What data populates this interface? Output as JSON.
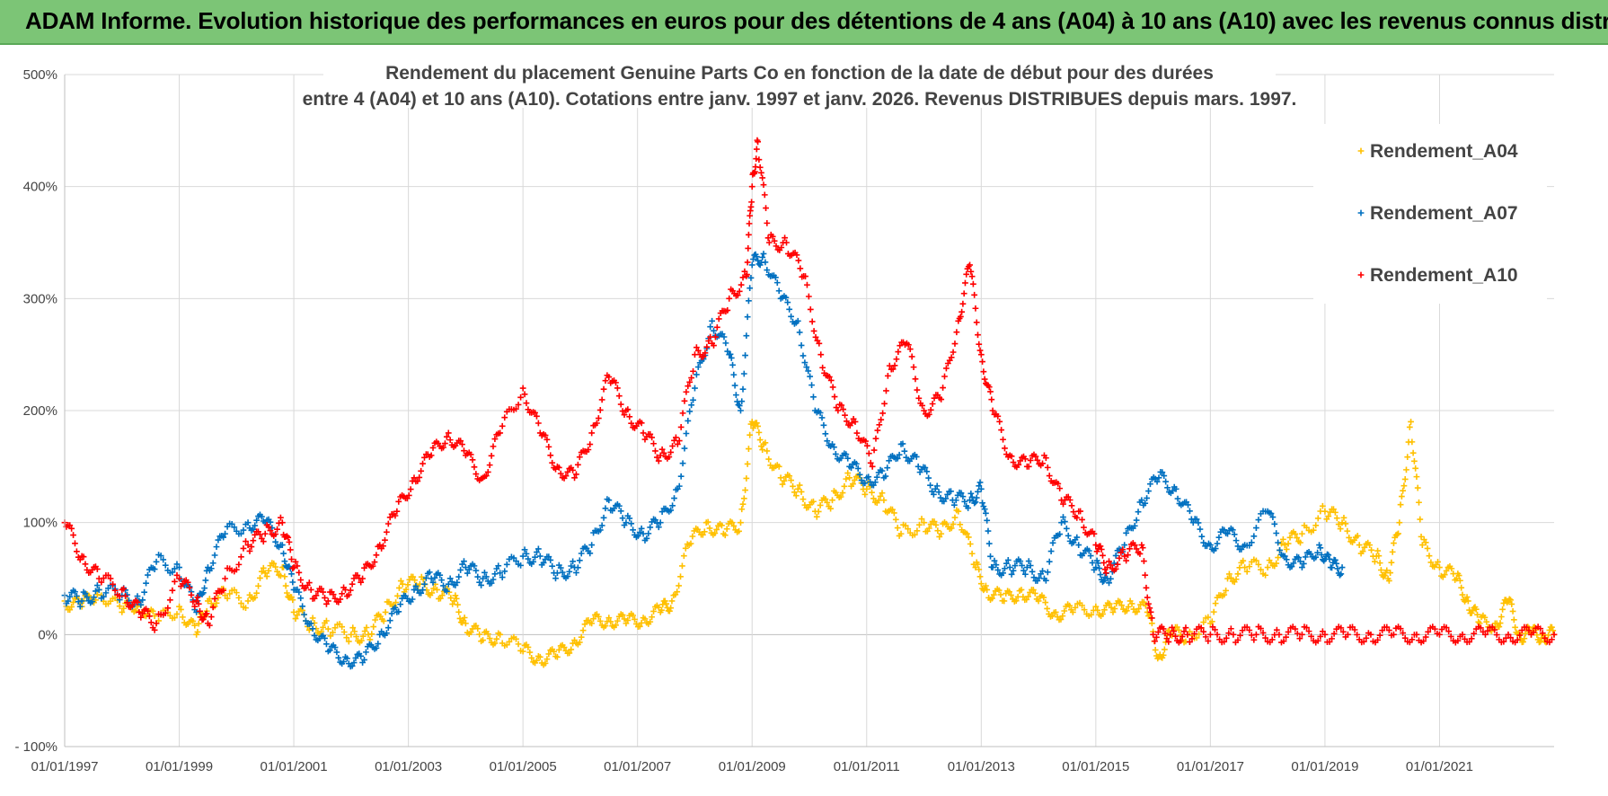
{
  "banner": {
    "title": "ADAM Informe. Evolution historique des performances en euros pour des détentions de 4 ans (A04) à 10 ans (A10) avec les revenus connus distribués"
  },
  "colors": {
    "banner": "#7cc576",
    "A04": "#ffc000",
    "A07": "#0070c0",
    "A10": "#ff0000",
    "grid": "#d9d9d9"
  },
  "chart_data": {
    "type": "scatter",
    "title_line1": "Rendement du placement Genuine Parts Co en fonction de la date de début pour des durées",
    "title_line2": "entre 4 (A04) et 10 ans (A10).  Cotations entre janv. 1997 et janv. 2026.  Revenus DISTRIBUES depuis mars. 1997.",
    "xlabel": "",
    "ylabel": "",
    "xlim": [
      1997.0,
      2023.0
    ],
    "ylim": [
      -100,
      500
    ],
    "y_ticks": [
      {
        "value": 500,
        "label": "500%"
      },
      {
        "value": 400,
        "label": "400%"
      },
      {
        "value": 300,
        "label": "300%"
      },
      {
        "value": 200,
        "label": "200%"
      },
      {
        "value": 100,
        "label": "100%"
      },
      {
        "value": 0,
        "label": "0%"
      },
      {
        "value": -100,
        "label": "- 100%"
      }
    ],
    "x_ticks": [
      {
        "value": 1997,
        "label": "01/01/1997"
      },
      {
        "value": 1999,
        "label": "01/01/1999"
      },
      {
        "value": 2001,
        "label": "01/01/2001"
      },
      {
        "value": 2003,
        "label": "01/01/2003"
      },
      {
        "value": 2005,
        "label": "01/01/2005"
      },
      {
        "value": 2007,
        "label": "01/01/2007"
      },
      {
        "value": 2009,
        "label": "01/01/2009"
      },
      {
        "value": 2011,
        "label": "01/01/2011"
      },
      {
        "value": 2013,
        "label": "01/01/2013"
      },
      {
        "value": 2015,
        "label": "01/01/2015"
      },
      {
        "value": 2017,
        "label": "01/01/2017"
      },
      {
        "value": 2019,
        "label": "01/01/2019"
      },
      {
        "value": 2021,
        "label": "01/01/2021"
      }
    ],
    "grid": true,
    "legend_position": "top-right",
    "series": [
      {
        "name": "Rendement_A04",
        "marker": "+",
        "x": [
          1997.0,
          1997.3,
          1997.6,
          1998.0,
          1998.3,
          1998.6,
          1999.0,
          1999.3,
          1999.5,
          1999.8,
          2000.2,
          2000.5,
          2000.8,
          2001.0,
          2001.3,
          2001.6,
          2002.0,
          2002.3,
          2002.6,
          2002.9,
          2003.2,
          2003.5,
          2003.8,
          2004.0,
          2004.3,
          2004.6,
          2005.0,
          2005.3,
          2005.6,
          2005.9,
          2006.2,
          2006.5,
          2006.8,
          2007.1,
          2007.4,
          2007.6,
          2007.9,
          2008.2,
          2008.5,
          2008.8,
          2009.0,
          2009.2,
          2009.5,
          2009.8,
          2010.1,
          2010.4,
          2010.7,
          2011.0,
          2011.3,
          2011.6,
          2012.0,
          2012.3,
          2012.6,
          2012.9,
          2013.1,
          2013.4,
          2013.7,
          2014.0,
          2014.3,
          2014.6,
          2015.0,
          2015.3,
          2015.6,
          2015.9,
          2016.1,
          2016.3,
          2016.6,
          2017.0,
          2017.3,
          2017.6,
          2018.0,
          2018.3,
          2018.6,
          2019.0,
          2019.3,
          2019.6,
          2019.9,
          2020.1,
          2020.3,
          2020.5,
          2020.7,
          2021.0,
          2021.3,
          2021.5,
          2021.7,
          2022.0,
          2022.2,
          2022.4,
          2022.6,
          2022.8,
          2023.0
        ],
        "values": [
          30,
          25,
          40,
          20,
          30,
          10,
          25,
          0,
          30,
          35,
          30,
          55,
          60,
          20,
          10,
          5,
          0,
          0,
          20,
          45,
          45,
          40,
          30,
          10,
          -5,
          0,
          -15,
          -20,
          -20,
          -5,
          10,
          15,
          10,
          15,
          20,
          30,
          80,
          100,
          90,
          100,
          190,
          170,
          140,
          130,
          110,
          120,
          140,
          130,
          120,
          90,
          100,
          90,
          110,
          60,
          40,
          30,
          40,
          30,
          20,
          20,
          25,
          20,
          30,
          20,
          -20,
          0,
          0,
          10,
          50,
          60,
          60,
          80,
          90,
          110,
          100,
          80,
          70,
          50,
          100,
          190,
          80,
          60,
          50,
          30,
          10,
          10,
          30,
          0,
          0,
          0,
          0
        ]
      },
      {
        "name": "Rendement_A07",
        "marker": "+",
        "x": [
          1997.0,
          1997.3,
          1997.6,
          1998.0,
          1998.3,
          1998.6,
          1999.0,
          1999.3,
          1999.5,
          1999.8,
          2000.2,
          2000.5,
          2000.8,
          2001.0,
          2001.3,
          2001.6,
          2001.9,
          2002.2,
          2002.5,
          2002.8,
          2003.1,
          2003.4,
          2003.7,
          2004.0,
          2004.3,
          2004.6,
          2005.0,
          2005.3,
          2005.6,
          2005.9,
          2006.2,
          2006.5,
          2006.8,
          2007.1,
          2007.4,
          2007.7,
          2008.0,
          2008.3,
          2008.6,
          2008.8,
          2009.0,
          2009.2,
          2009.5,
          2009.8,
          2010.1,
          2010.4,
          2010.7,
          2011.0,
          2011.3,
          2011.6,
          2011.9,
          2012.2,
          2012.5,
          2012.8,
          2013.0,
          2013.2,
          2013.5,
          2013.8,
          2014.1,
          2014.4,
          2014.7,
          2015.0,
          2015.2,
          2015.5,
          2015.8,
          2016.1,
          2016.4,
          2016.7,
          2017.0,
          2017.3,
          2017.6,
          2018.0,
          2018.3,
          2018.6,
          2018.9,
          2019.1,
          2019.3
        ],
        "values": [
          35,
          30,
          40,
          35,
          30,
          65,
          60,
          20,
          60,
          90,
          100,
          100,
          80,
          40,
          10,
          -15,
          -20,
          -25,
          0,
          20,
          40,
          50,
          45,
          60,
          50,
          55,
          70,
          70,
          55,
          60,
          80,
          120,
          100,
          90,
          100,
          130,
          220,
          280,
          250,
          200,
          330,
          340,
          300,
          280,
          200,
          170,
          150,
          140,
          140,
          170,
          150,
          130,
          120,
          120,
          130,
          60,
          60,
          60,
          50,
          100,
          80,
          60,
          50,
          80,
          120,
          140,
          130,
          100,
          80,
          90,
          80,
          110,
          70,
          60,
          80,
          60,
          60
        ]
      },
      {
        "name": "Rendement_A10",
        "marker": "+",
        "x": [
          1997.0,
          1997.3,
          1997.6,
          1998.0,
          1998.3,
          1998.6,
          1999.0,
          1999.3,
          1999.5,
          1999.8,
          2000.2,
          2000.5,
          2000.8,
          2001.0,
          2001.3,
          2001.6,
          2001.9,
          2002.2,
          2002.5,
          2002.8,
          2003.1,
          2003.4,
          2003.7,
          2004.0,
          2004.3,
          2004.6,
          2005.0,
          2005.3,
          2005.6,
          2005.9,
          2006.2,
          2006.5,
          2006.8,
          2007.1,
          2007.4,
          2007.7,
          2008.0,
          2008.3,
          2008.6,
          2008.9,
          2009.0,
          2009.1,
          2009.3,
          2009.6,
          2009.9,
          2010.2,
          2010.5,
          2010.8,
          2011.1,
          2011.4,
          2011.7,
          2012.0,
          2012.3,
          2012.6,
          2012.8,
          2013.0,
          2013.2,
          2013.5,
          2013.8,
          2014.1,
          2014.4,
          2014.7,
          2015.0,
          2015.2,
          2015.5,
          2015.8,
          2016.0,
          2016.3,
          2016.6,
          2017.0,
          2017.4,
          2017.8,
          2018.2,
          2018.6,
          2019.0,
          2019.4,
          2019.8,
          2020.2,
          2020.6,
          2021.0,
          2021.4,
          2021.8,
          2022.2,
          2022.6,
          2023.0
        ],
        "values": [
          100,
          70,
          50,
          40,
          20,
          10,
          50,
          30,
          10,
          50,
          80,
          90,
          100,
          60,
          40,
          30,
          40,
          50,
          80,
          110,
          140,
          160,
          180,
          160,
          140,
          180,
          220,
          180,
          150,
          140,
          180,
          230,
          200,
          180,
          160,
          170,
          250,
          260,
          300,
          320,
          400,
          440,
          350,
          350,
          320,
          250,
          200,
          190,
          150,
          240,
          260,
          200,
          210,
          280,
          330,
          250,
          200,
          160,
          150,
          160,
          120,
          110,
          80,
          60,
          70,
          80,
          0,
          0,
          0,
          0,
          0,
          0,
          0,
          0,
          0,
          0,
          0,
          0,
          0,
          0,
          0,
          0,
          0,
          0,
          0
        ]
      }
    ]
  }
}
